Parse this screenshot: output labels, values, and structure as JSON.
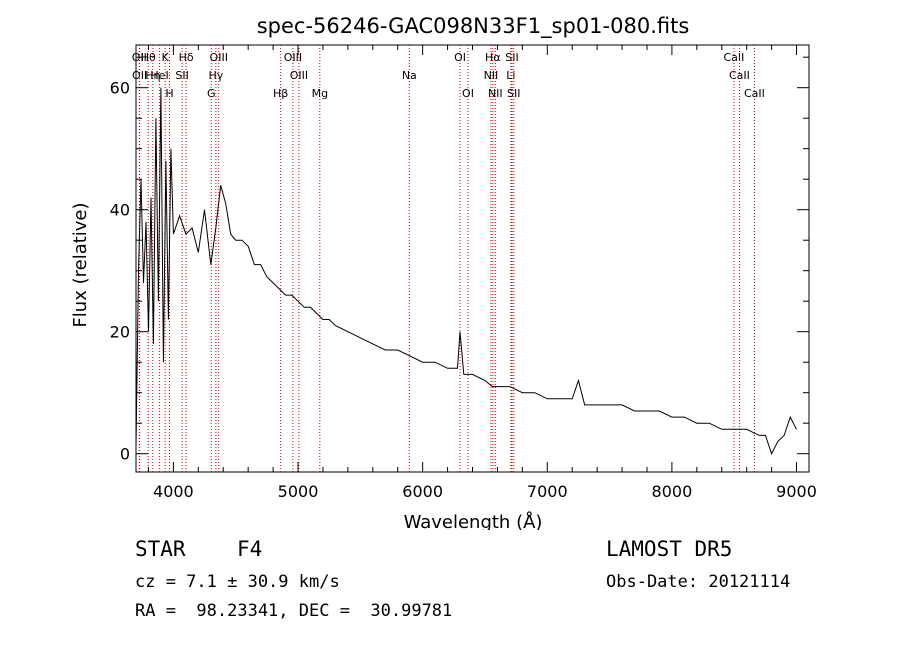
{
  "chart_data": {
    "type": "line",
    "title": "spec-56246-GAC098N33F1_sp01-080.fits",
    "xlabel": "Wavelength (Å)",
    "ylabel": "Flux (relative)",
    "xlim": [
      3700,
      9100
    ],
    "ylim": [
      -3,
      67
    ],
    "xticks": [
      4000,
      5000,
      6000,
      7000,
      8000,
      9000
    ],
    "yticks": [
      0,
      20,
      40,
      60
    ],
    "grid": false,
    "series": [
      {
        "x": [
          3700,
          3720,
          3740,
          3760,
          3780,
          3800,
          3820,
          3840,
          3860,
          3880,
          3900,
          3920,
          3940,
          3960,
          3980,
          4000,
          4050,
          4100,
          4150,
          4200,
          4250,
          4300,
          4340,
          4380,
          4420,
          4460,
          4500,
          4550,
          4600,
          4650,
          4700,
          4750,
          4800,
          4850,
          4900,
          4950,
          5000,
          5050,
          5100,
          5150,
          5200,
          5250,
          5300,
          5400,
          5500,
          5600,
          5700,
          5800,
          5900,
          6000,
          6100,
          6200,
          6280,
          6300,
          6330,
          6400,
          6500,
          6560,
          6600,
          6700,
          6800,
          6900,
          7000,
          7100,
          7200,
          7250,
          7300,
          7400,
          7500,
          7600,
          7700,
          7800,
          7900,
          8000,
          8100,
          8200,
          8300,
          8400,
          8500,
          8600,
          8700,
          8750,
          8800,
          8850,
          8900,
          8950,
          9000
        ],
        "y": [
          1,
          30,
          45,
          28,
          38,
          20,
          42,
          18,
          55,
          25,
          60,
          15,
          48,
          22,
          50,
          36,
          39,
          36,
          37,
          33,
          40,
          31,
          37,
          44,
          41,
          36,
          35,
          35,
          34,
          31,
          31,
          29,
          28,
          27,
          26,
          26,
          25,
          24,
          24,
          23,
          22,
          22,
          21,
          20,
          19,
          18,
          17,
          17,
          16,
          15,
          15,
          14,
          14,
          20,
          13,
          13,
          12,
          11,
          11,
          11,
          10,
          10,
          9,
          9,
          9,
          12,
          8,
          8,
          8,
          8,
          7,
          7,
          7,
          6,
          6,
          5,
          5,
          4,
          4,
          4,
          3,
          3,
          0,
          2,
          3,
          6,
          4
        ]
      }
    ],
    "lines": [
      {
        "label": "Hθ",
        "x": 3798
      },
      {
        "label": "K",
        "x": 3934
      },
      {
        "label": "Hδ",
        "x": 4102
      },
      {
        "label": "OIII",
        "x": 4364
      },
      {
        "label": "OIII",
        "x": 4959
      },
      {
        "label": "OI",
        "x": 6300
      },
      {
        "label": "Hα",
        "x": 6563
      },
      {
        "label": "SII",
        "x": 6717
      },
      {
        "label": "CaII",
        "x": 8498
      },
      {
        "label": "OII",
        "x": 3727
      },
      {
        "label": "HeI",
        "x": 3889
      },
      {
        "label": "SII",
        "x": 4070
      },
      {
        "label": "Hγ",
        "x": 4341
      },
      {
        "label": "OIII",
        "x": 5007
      },
      {
        "label": "Na",
        "x": 5893
      },
      {
        "label": "NII",
        "x": 6548
      },
      {
        "label": "Li",
        "x": 6708
      },
      {
        "label": "CaII",
        "x": 8542
      },
      {
        "label": "OII",
        "x": 3729
      },
      {
        "label": "Hη",
        "x": 3835
      },
      {
        "label": "H",
        "x": 3969
      },
      {
        "label": "G",
        "x": 4304
      },
      {
        "label": "Hβ",
        "x": 4861
      },
      {
        "label": "Mg",
        "x": 5175
      },
      {
        "label": "OI",
        "x": 6364
      },
      {
        "label": "NII",
        "x": 6583
      },
      {
        "label": "SII",
        "x": 6731
      },
      {
        "label": "CaII",
        "x": 8662
      }
    ]
  },
  "info": {
    "object_type": "STAR",
    "subclass": "F4",
    "survey": "LAMOST DR5",
    "cz": "cz = 7.1 ± 30.9 km/s",
    "obs_date": "Obs-Date: 20121114",
    "radec": "RA =  98.23341, DEC =  30.99781"
  },
  "colors": {
    "spectrum": "#000000",
    "line_marker": "#cc0000",
    "background": "#ffffff"
  }
}
